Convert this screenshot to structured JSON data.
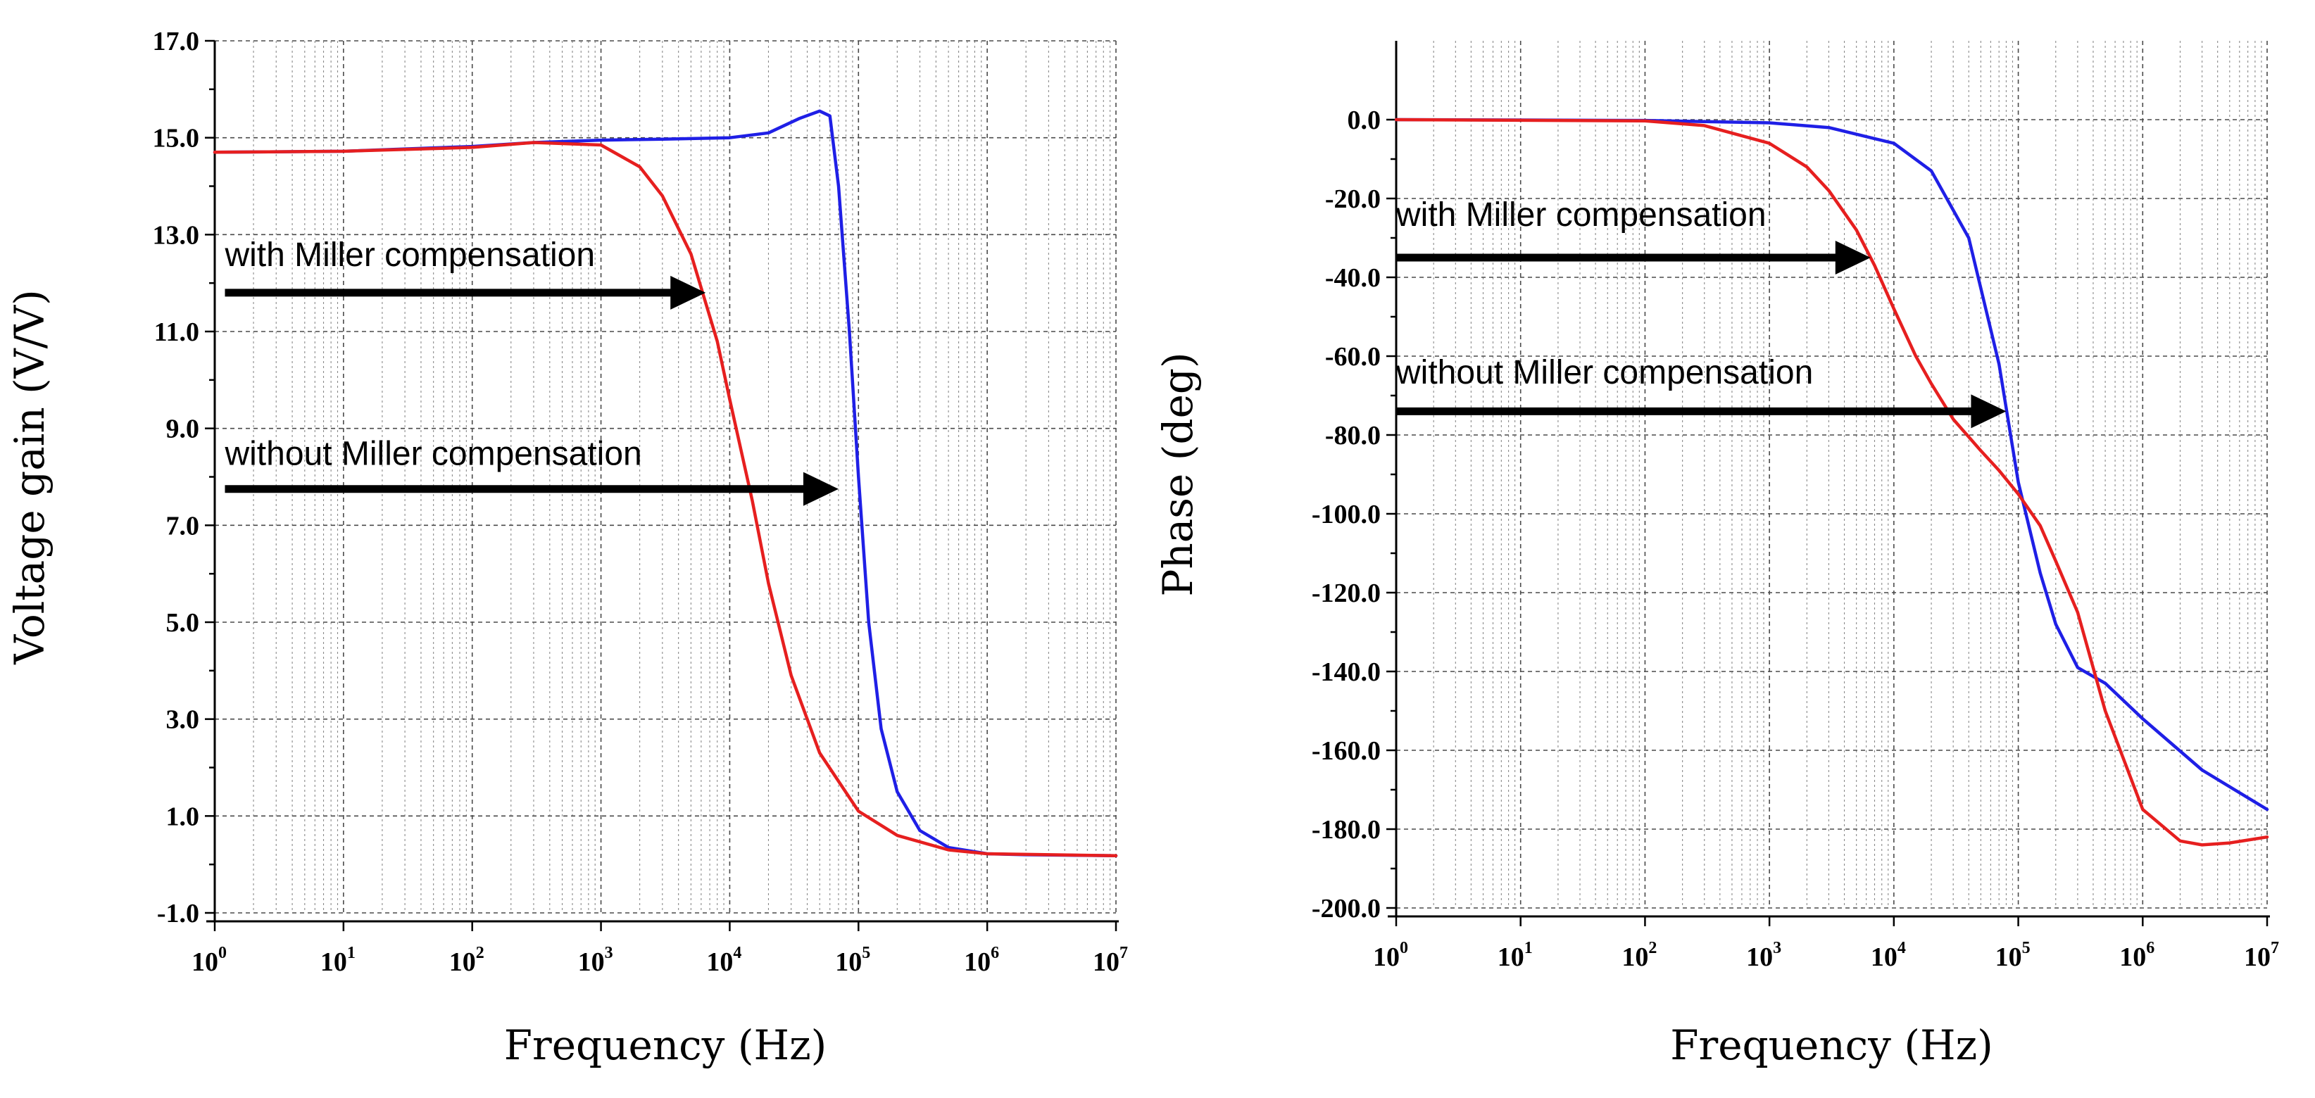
{
  "chart_data": [
    {
      "type": "line",
      "title": "",
      "xlabel": "Frequency (Hz)",
      "ylabel": "Voltage gain (V/V)",
      "xscale": "log",
      "xlim": [
        1,
        10000000
      ],
      "ylim": [
        -1.0,
        17.0
      ],
      "grid": true,
      "x_ticks": [
        {
          "base": "10",
          "exp": "0"
        },
        {
          "base": "10",
          "exp": "1"
        },
        {
          "base": "10",
          "exp": "2"
        },
        {
          "base": "10",
          "exp": "3"
        },
        {
          "base": "10",
          "exp": "4"
        },
        {
          "base": "10",
          "exp": "5"
        },
        {
          "base": "10",
          "exp": "6"
        },
        {
          "base": "10",
          "exp": "7"
        }
      ],
      "y_ticks": [
        "-1.0",
        "1.0",
        "3.0",
        "5.0",
        "7.0",
        "9.0",
        "11.0",
        "13.0",
        "15.0",
        "17.0"
      ],
      "series": [
        {
          "name": "without Miller compensation",
          "color": "#1f1fe6",
          "x": [
            1,
            10,
            100,
            300,
            1000,
            3000,
            10000,
            20000,
            35000,
            50000,
            60000,
            70000,
            85000,
            100000,
            120000,
            150000,
            200000,
            300000,
            500000,
            1000000,
            2000000,
            10000000
          ],
          "y": [
            14.7,
            14.72,
            14.82,
            14.9,
            14.95,
            14.97,
            15.0,
            15.1,
            15.4,
            15.55,
            15.45,
            14.0,
            11.0,
            8.0,
            5.0,
            2.8,
            1.5,
            0.7,
            0.35,
            0.22,
            0.2,
            0.18
          ]
        },
        {
          "name": "with Miller compensation",
          "color": "#e61f1f",
          "x": [
            1,
            10,
            100,
            300,
            1000,
            2000,
            3000,
            5000,
            8000,
            10000,
            15000,
            20000,
            30000,
            50000,
            100000,
            200000,
            500000,
            1000000,
            10000000
          ],
          "y": [
            14.7,
            14.72,
            14.8,
            14.9,
            14.85,
            14.4,
            13.8,
            12.6,
            10.8,
            9.6,
            7.5,
            5.8,
            3.9,
            2.3,
            1.1,
            0.6,
            0.3,
            0.22,
            0.18
          ]
        }
      ],
      "annotations": [
        {
          "text": "with Miller compensation",
          "x": 1.2,
          "y": 12.35,
          "arrow_from_x": 1.2,
          "arrow_to_x": 6500,
          "arrow_y": 11.8
        },
        {
          "text": "without Miller compensation",
          "x": 1.2,
          "y": 8.25,
          "arrow_from_x": 1.2,
          "arrow_to_x": 70000,
          "arrow_y": 7.75
        }
      ]
    },
    {
      "type": "line",
      "title": "",
      "xlabel": "Frequency (Hz)",
      "ylabel": "Phase (deg)",
      "xscale": "log",
      "xlim": [
        1,
        10000000
      ],
      "ylim": [
        -200.0,
        20.0
      ],
      "grid": true,
      "x_ticks": [
        {
          "base": "10",
          "exp": "0"
        },
        {
          "base": "10",
          "exp": "1"
        },
        {
          "base": "10",
          "exp": "2"
        },
        {
          "base": "10",
          "exp": "3"
        },
        {
          "base": "10",
          "exp": "4"
        },
        {
          "base": "10",
          "exp": "5"
        },
        {
          "base": "10",
          "exp": "6"
        },
        {
          "base": "10",
          "exp": "7"
        }
      ],
      "y_ticks": [
        "-200.0",
        "-180.0",
        "-160.0",
        "-140.0",
        "-120.0",
        "-100.0",
        "-80.0",
        "-60.0",
        "-40.0",
        "-20.0",
        "0.0"
      ],
      "series": [
        {
          "name": "without Miller compensation",
          "color": "#1f1fe6",
          "x": [
            1,
            100,
            1000,
            3000,
            10000,
            20000,
            40000,
            70000,
            100000,
            150000,
            200000,
            300000,
            500000,
            1000000,
            3000000,
            10000000
          ],
          "y": [
            0,
            -0.2,
            -0.8,
            -2,
            -6,
            -13,
            -30,
            -62,
            -92,
            -115,
            -128,
            -139,
            -143,
            -152,
            -165,
            -175
          ]
        },
        {
          "name": "with Miller compensation",
          "color": "#e61f1f",
          "x": [
            1,
            100,
            300,
            1000,
            2000,
            3000,
            5000,
            7000,
            10000,
            15000,
            20000,
            30000,
            50000,
            70000,
            100000,
            150000,
            200000,
            300000,
            500000,
            1000000,
            2000000,
            3000000,
            5000000,
            10000000
          ],
          "y": [
            0,
            -0.3,
            -1.5,
            -6,
            -12,
            -18,
            -28,
            -37,
            -48,
            -60,
            -67,
            -76,
            -84,
            -89,
            -95,
            -103,
            -112,
            -125,
            -150,
            -175,
            -183,
            -184,
            -183.5,
            -182
          ]
        }
      ],
      "annotations": [
        {
          "text": "with Miller compensation",
          "x": 1.0,
          "y": -27,
          "arrow_from_x": 1.0,
          "arrow_to_x": 6500,
          "arrow_y": -35
        },
        {
          "text": "without Miller compensation",
          "x": 1.0,
          "y": -67,
          "arrow_from_x": 1.0,
          "arrow_to_x": 80000,
          "arrow_y": -74
        }
      ]
    }
  ]
}
